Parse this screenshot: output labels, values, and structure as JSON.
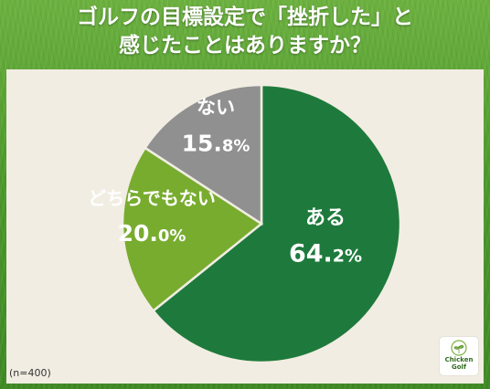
{
  "title_line1": "ゴルフの目標設定で「挫折した」と",
  "title_line2": "感じたことはありますか？",
  "note": "(n=400)",
  "logo": {
    "line1": "Chicken",
    "line2": "Golf"
  },
  "colors": {
    "aru": "#1e7a3c",
    "dochira": "#78ac2f",
    "nai": "#909090",
    "panel": "#f1ede2"
  },
  "chart_data": {
    "type": "pie",
    "slices": [
      {
        "label": "ある",
        "value": 64.2,
        "text_int": "64.",
        "text_dec": "2%",
        "color": "#1e7a3c",
        "label_color": "#ffffff"
      },
      {
        "label": "どちらでもない",
        "value": 20.0,
        "text_int": "20.",
        "text_dec": "0%",
        "color": "#78ac2f",
        "label_color": "#ffffff"
      },
      {
        "label": "ない",
        "value": 15.8,
        "text_int": "15.",
        "text_dec": "8%",
        "color": "#909090",
        "label_color": "#ffffff"
      }
    ]
  }
}
